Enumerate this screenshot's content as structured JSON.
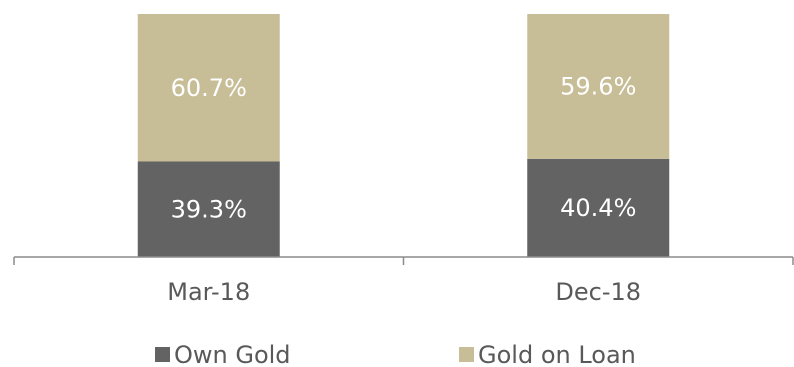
{
  "chart_data": {
    "type": "bar",
    "stacked": true,
    "categories": [
      "Mar-18",
      "Dec-18"
    ],
    "ylim": [
      0,
      100
    ],
    "grid": false,
    "legend_position": "bottom",
    "series": [
      {
        "name": "Own Gold",
        "values": [
          39.3,
          40.4
        ],
        "labels": [
          "39.3%",
          "40.4%"
        ],
        "color": "#636363"
      },
      {
        "name": "Gold on Loan",
        "values": [
          60.7,
          59.6
        ],
        "labels": [
          "60.7%",
          "59.6%"
        ],
        "color": "#c7bd97"
      }
    ]
  }
}
